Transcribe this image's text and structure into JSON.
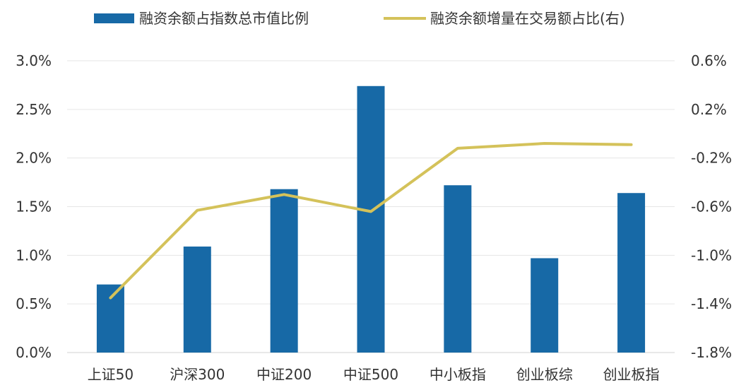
{
  "chart_data": {
    "type": "bar",
    "categories": [
      "上证50",
      "沪深300",
      "中证200",
      "中证500",
      "中小板指",
      "创业板综",
      "创业板指"
    ],
    "series": [
      {
        "name": "融资余额占指数总市值比例",
        "type": "bar",
        "axis": "left",
        "color": "#1769a6",
        "values": [
          0.7,
          1.09,
          1.68,
          2.74,
          1.72,
          0.97,
          1.64
        ]
      },
      {
        "name": "融资余额增量在交易额占比(右)",
        "type": "line",
        "axis": "right",
        "color": "#d4c25a",
        "values": [
          -1.35,
          -0.63,
          -0.5,
          -0.64,
          -0.12,
          -0.08,
          -0.09
        ]
      }
    ],
    "y_left": {
      "ylim": [
        0,
        3.0
      ],
      "ticks": [
        0,
        0.5,
        1.0,
        1.5,
        2.0,
        2.5,
        3.0
      ],
      "tick_labels": [
        "0.0%",
        "0.5%",
        "1.0%",
        "1.5%",
        "2.0%",
        "2.5%",
        "3.0%"
      ]
    },
    "y_right": {
      "ylim": [
        -1.8,
        0.6
      ],
      "ticks": [
        -1.8,
        -1.4,
        -1.0,
        -0.6,
        -0.2,
        0.2,
        0.6
      ],
      "tick_labels": [
        "-1.8%",
        "-1.4%",
        "-1.0%",
        "-0.6%",
        "-0.2%",
        "0.2%",
        "0.6%"
      ]
    },
    "grid": true,
    "gridline_color": "#e6e6e6",
    "legend_position": "top"
  }
}
